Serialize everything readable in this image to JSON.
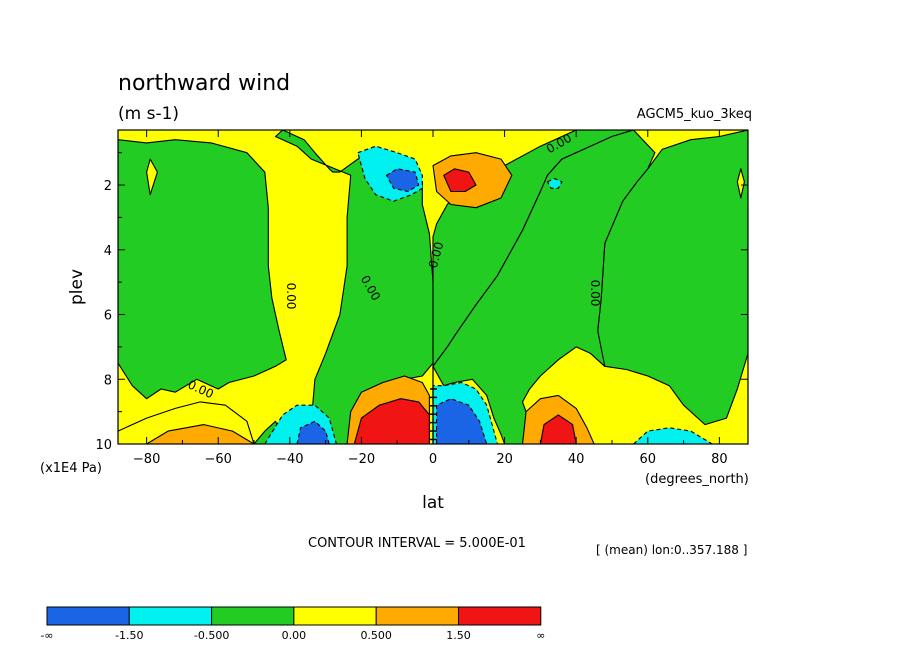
{
  "chart_data": {
    "type": "contour",
    "title": "northward wind",
    "units": "(m s-1)",
    "model_label": "AGCM5_kuo_3keq",
    "xlabel": "lat",
    "x_units": "(degrees_north)",
    "ylabel": "plev",
    "y_units": "(x1E4 Pa)",
    "xlim": [
      -88,
      88
    ],
    "ylim": [
      10,
      0.3
    ],
    "x_ticks": [
      -80,
      -60,
      -40,
      -20,
      0,
      20,
      40,
      60,
      80
    ],
    "y_ticks": [
      2,
      4,
      6,
      8,
      10
    ],
    "contour_interval_text": "CONTOUR INTERVAL = 5.000E-01",
    "mean_text": "[ (mean) lon:0..357.188 ]",
    "zero_contour_label": "0.00",
    "colorbar": {
      "labels": [
        "-∞",
        "-1.50",
        "-0.500",
        "0.00",
        "0.500",
        "1.50",
        "∞"
      ],
      "colors": [
        "#1a64e6",
        "#00f0f0",
        "#22cc22",
        "#ffff00",
        "#ffaa00",
        "#f01414"
      ]
    },
    "regions": [
      {
        "level": "0..0.5",
        "color": "#ffff00",
        "points": [
          [
            -88,
            0.3
          ],
          [
            88,
            0.3
          ],
          [
            88,
            10
          ],
          [
            -88,
            10
          ]
        ]
      },
      {
        "level": "-0.5..0",
        "color": "#22cc22",
        "points": [
          [
            -88,
            0.6
          ],
          [
            -80,
            0.7
          ],
          [
            -72,
            0.6
          ],
          [
            -62,
            0.7
          ],
          [
            -52,
            1.0
          ],
          [
            -47,
            1.6
          ],
          [
            -46,
            2.7
          ],
          [
            -46,
            4.5
          ],
          [
            -45,
            5.5
          ],
          [
            -43,
            6.5
          ],
          [
            -41,
            7.4
          ],
          [
            -44,
            7.6
          ],
          [
            -50,
            7.9
          ],
          [
            -57,
            8.1
          ],
          [
            -60,
            8.3
          ],
          [
            -66,
            8.0
          ],
          [
            -72,
            8.4
          ],
          [
            -76,
            8.3
          ],
          [
            -80,
            8.6
          ],
          [
            -84,
            8.2
          ],
          [
            -88,
            7.5
          ]
        ]
      },
      {
        "level": "-0.5..0",
        "color": "#22cc22",
        "points": [
          [
            88,
            0.3
          ],
          [
            88,
            7.2
          ],
          [
            85,
            8.3
          ],
          [
            82,
            9.2
          ],
          [
            76,
            9.4
          ],
          [
            70,
            8.8
          ],
          [
            66,
            8.2
          ],
          [
            60,
            7.9
          ],
          [
            54,
            7.7
          ],
          [
            48,
            7.6
          ],
          [
            44,
            7.2
          ],
          [
            46,
            6.5
          ],
          [
            47,
            5.5
          ],
          [
            48,
            3.8
          ],
          [
            53,
            2.5
          ],
          [
            57,
            1.9
          ],
          [
            60,
            1.5
          ],
          [
            64,
            0.9
          ],
          [
            72,
            0.6
          ],
          [
            80,
            0.5
          ]
        ]
      },
      {
        "level": "-0.5..0",
        "color": "#22cc22",
        "points": [
          [
            -42,
            0.3
          ],
          [
            -36,
            0.6
          ],
          [
            -33,
            1.0
          ],
          [
            -29,
            1.5
          ],
          [
            -28,
            1.6
          ],
          [
            -26,
            1.6
          ],
          [
            -21,
            1.2
          ],
          [
            -16,
            1.0
          ],
          [
            -13,
            1.1
          ],
          [
            -9,
            1.4
          ],
          [
            -6,
            1.6
          ],
          [
            -3,
            1.9
          ],
          [
            -3,
            2.6
          ],
          [
            -1,
            3.5
          ],
          [
            0,
            5.0
          ],
          [
            0,
            7.5
          ],
          [
            -3,
            7.9
          ],
          [
            -8,
            8.0
          ],
          [
            -12,
            8.3
          ],
          [
            -18,
            8.4
          ],
          [
            -22,
            8.8
          ],
          [
            -23,
            9.5
          ],
          [
            -24,
            10
          ],
          [
            -30,
            10
          ],
          [
            -34,
            9.3
          ],
          [
            -33,
            8.0
          ],
          [
            -30,
            7.2
          ],
          [
            -26,
            6.0
          ],
          [
            -24,
            4.5
          ],
          [
            -24,
            3.0
          ],
          [
            -23,
            1.7
          ],
          [
            -34,
            1.2
          ],
          [
            -38,
            0.8
          ],
          [
            -44,
            0.5
          ]
        ]
      },
      {
        "level": "-0.5..0",
        "color": "#22cc22",
        "points": [
          [
            0,
            7.6
          ],
          [
            4,
            7.0
          ],
          [
            7,
            6.5
          ],
          [
            12,
            5.7
          ],
          [
            18,
            4.8
          ],
          [
            25,
            3.4
          ],
          [
            30,
            2.2
          ],
          [
            32,
            1.7
          ],
          [
            36,
            1.2
          ],
          [
            44,
            0.8
          ],
          [
            50,
            0.5
          ],
          [
            56,
            0.3
          ],
          [
            40,
            0.3
          ],
          [
            36,
            0.5
          ],
          [
            30,
            0.8
          ],
          [
            20,
            1.4
          ],
          [
            14,
            1.8
          ],
          [
            8,
            2.1
          ],
          [
            4,
            2.6
          ],
          [
            1,
            3.2
          ],
          [
            0,
            3.6
          ],
          [
            0,
            5.5
          ]
        ]
      },
      {
        "level": "-0.5..0",
        "color": "#22cc22",
        "points": [
          [
            0,
            7.6
          ],
          [
            3,
            8.2
          ],
          [
            6,
            8.1
          ],
          [
            11,
            8.0
          ],
          [
            15,
            8.5
          ],
          [
            17,
            9.2
          ],
          [
            19,
            9.7
          ],
          [
            20,
            10
          ],
          [
            26,
            10
          ],
          [
            27,
            9.3
          ],
          [
            25,
            8.7
          ],
          [
            27,
            8.3
          ],
          [
            30,
            7.9
          ],
          [
            35,
            7.4
          ],
          [
            40,
            7.0
          ],
          [
            44,
            7.2
          ],
          [
            48,
            7.6
          ],
          [
            46,
            6.5
          ],
          [
            47,
            5.5
          ],
          [
            48,
            3.8
          ],
          [
            53,
            2.5
          ],
          [
            57,
            1.9
          ],
          [
            60,
            1.5
          ],
          [
            62,
            1.0
          ],
          [
            56,
            0.3
          ],
          [
            50,
            0.5
          ],
          [
            44,
            0.8
          ],
          [
            36,
            1.2
          ],
          [
            32,
            1.7
          ],
          [
            30,
            2.2
          ],
          [
            25,
            3.4
          ],
          [
            18,
            4.8
          ],
          [
            12,
            5.7
          ],
          [
            7,
            6.5
          ],
          [
            4,
            7.0
          ]
        ]
      },
      {
        "level": "0..0.5",
        "color": "#ffff00",
        "points": [
          [
            -88,
            9.6
          ],
          [
            -80,
            9.2
          ],
          [
            -72,
            8.9
          ],
          [
            -65,
            8.7
          ],
          [
            -58,
            8.8
          ],
          [
            -52,
            9.3
          ],
          [
            -50,
            10
          ],
          [
            -88,
            10
          ]
        ]
      },
      {
        "level": "0.5..1.5",
        "color": "#ffaa00",
        "points": [
          [
            -80,
            10
          ],
          [
            -74,
            9.6
          ],
          [
            -64,
            9.4
          ],
          [
            -56,
            9.6
          ],
          [
            -50,
            10
          ]
        ]
      },
      {
        "level": "-0.5..0",
        "color": "#22cc22",
        "points": [
          [
            -50,
            10
          ],
          [
            -47,
            9.6
          ],
          [
            -44,
            9.3
          ],
          [
            -42,
            9.8
          ],
          [
            -43,
            10
          ]
        ]
      },
      {
        "level": "-1.5..-0.5",
        "color": "#00f0f0",
        "points": [
          [
            -47,
            10
          ],
          [
            -42,
            9.1
          ],
          [
            -38,
            8.8
          ],
          [
            -33,
            8.8
          ],
          [
            -29,
            9.2
          ],
          [
            -27,
            10
          ]
        ]
      },
      {
        "level": "< -1.5",
        "color": "#1a64e6",
        "points": [
          [
            -38,
            10
          ],
          [
            -37,
            9.5
          ],
          [
            -33,
            9.3
          ],
          [
            -30,
            9.6
          ],
          [
            -29,
            10
          ]
        ]
      },
      {
        "level": "0.5..1.5",
        "color": "#ffaa00",
        "points": [
          [
            -24,
            10
          ],
          [
            -23,
            9.0
          ],
          [
            -20,
            8.4
          ],
          [
            -14,
            8.1
          ],
          [
            -8,
            7.9
          ],
          [
            -3,
            8.1
          ],
          [
            -1,
            8.5
          ],
          [
            -1,
            10
          ]
        ]
      },
      {
        "level": "> 1.5",
        "color": "#f01414",
        "points": [
          [
            -22,
            10
          ],
          [
            -20,
            9.2
          ],
          [
            -15,
            8.8
          ],
          [
            -9,
            8.6
          ],
          [
            -4,
            8.7
          ],
          [
            -1,
            9.1
          ],
          [
            -1,
            10
          ]
        ]
      },
      {
        "level": "-1.5..-0.5",
        "color": "#00f0f0",
        "points": [
          [
            0,
            10
          ],
          [
            0,
            8.2
          ],
          [
            3,
            8.2
          ],
          [
            8,
            8.1
          ],
          [
            12,
            8.3
          ],
          [
            15,
            8.8
          ],
          [
            17,
            9.6
          ],
          [
            18,
            10
          ]
        ]
      },
      {
        "level": "< -1.5",
        "color": "#1a64e6",
        "points": [
          [
            1,
            10
          ],
          [
            1,
            8.8
          ],
          [
            5,
            8.6
          ],
          [
            10,
            8.8
          ],
          [
            13,
            9.3
          ],
          [
            15,
            10
          ]
        ]
      },
      {
        "level": "0.5..1.5",
        "color": "#ffaa00",
        "points": [
          [
            25,
            10
          ],
          [
            26,
            9.0
          ],
          [
            30,
            8.6
          ],
          [
            35,
            8.5
          ],
          [
            40,
            8.9
          ],
          [
            43,
            9.5
          ],
          [
            45,
            10
          ]
        ]
      },
      {
        "level": "> 1.5",
        "color": "#f01414",
        "points": [
          [
            30,
            10
          ],
          [
            31,
            9.4
          ],
          [
            35,
            9.1
          ],
          [
            39,
            9.4
          ],
          [
            40,
            10
          ]
        ]
      },
      {
        "level": "-1.5..-0.5",
        "color": "#00f0f0",
        "points": [
          [
            56,
            10
          ],
          [
            60,
            9.6
          ],
          [
            66,
            9.5
          ],
          [
            72,
            9.6
          ],
          [
            78,
            10
          ]
        ]
      },
      {
        "level": "-1.5..-0.5",
        "color": "#00f0f0",
        "points": [
          [
            -21,
            1.0
          ],
          [
            -16,
            0.8
          ],
          [
            -10,
            1.0
          ],
          [
            -5,
            1.2
          ],
          [
            -3,
            1.7
          ],
          [
            -3,
            2.1
          ],
          [
            -6,
            2.3
          ],
          [
            -11,
            2.5
          ],
          [
            -16,
            2.3
          ],
          [
            -19,
            1.8
          ]
        ]
      },
      {
        "level": "< -1.5",
        "color": "#1a64e6",
        "points": [
          [
            -13,
            1.7
          ],
          [
            -10,
            1.5
          ],
          [
            -5,
            1.6
          ],
          [
            -4,
            2.0
          ],
          [
            -7,
            2.2
          ],
          [
            -11,
            2.1
          ]
        ]
      },
      {
        "level": "0.5..1.5",
        "color": "#ffaa00",
        "points": [
          [
            0,
            1.4
          ],
          [
            5,
            1.1
          ],
          [
            12,
            1.0
          ],
          [
            19,
            1.2
          ],
          [
            22,
            1.7
          ],
          [
            19,
            2.4
          ],
          [
            12,
            2.7
          ],
          [
            5,
            2.6
          ],
          [
            1,
            2.2
          ]
        ]
      },
      {
        "level": "> 1.5",
        "color": "#f01414",
        "points": [
          [
            3,
            1.7
          ],
          [
            6,
            1.5
          ],
          [
            10,
            1.6
          ],
          [
            12,
            2.0
          ],
          [
            9,
            2.2
          ],
          [
            5,
            2.2
          ]
        ]
      },
      {
        "level": "-1.5..-0.5",
        "color": "#00f0f0",
        "points": [
          [
            32,
            1.9
          ],
          [
            34,
            1.8
          ],
          [
            36,
            1.9
          ],
          [
            35,
            2.1
          ],
          [
            33,
            2.1
          ]
        ]
      },
      {
        "level": "0..0.5",
        "color": "#ffff00",
        "points": [
          [
            -80,
            1.6
          ],
          [
            -79,
            1.2
          ],
          [
            -77,
            1.6
          ],
          [
            -79,
            2.3
          ]
        ]
      },
      {
        "level": "0..0.5",
        "color": "#ffff00",
        "points": [
          [
            85,
            1.9
          ],
          [
            86,
            1.5
          ],
          [
            87,
            1.9
          ],
          [
            86,
            2.4
          ]
        ]
      }
    ]
  }
}
